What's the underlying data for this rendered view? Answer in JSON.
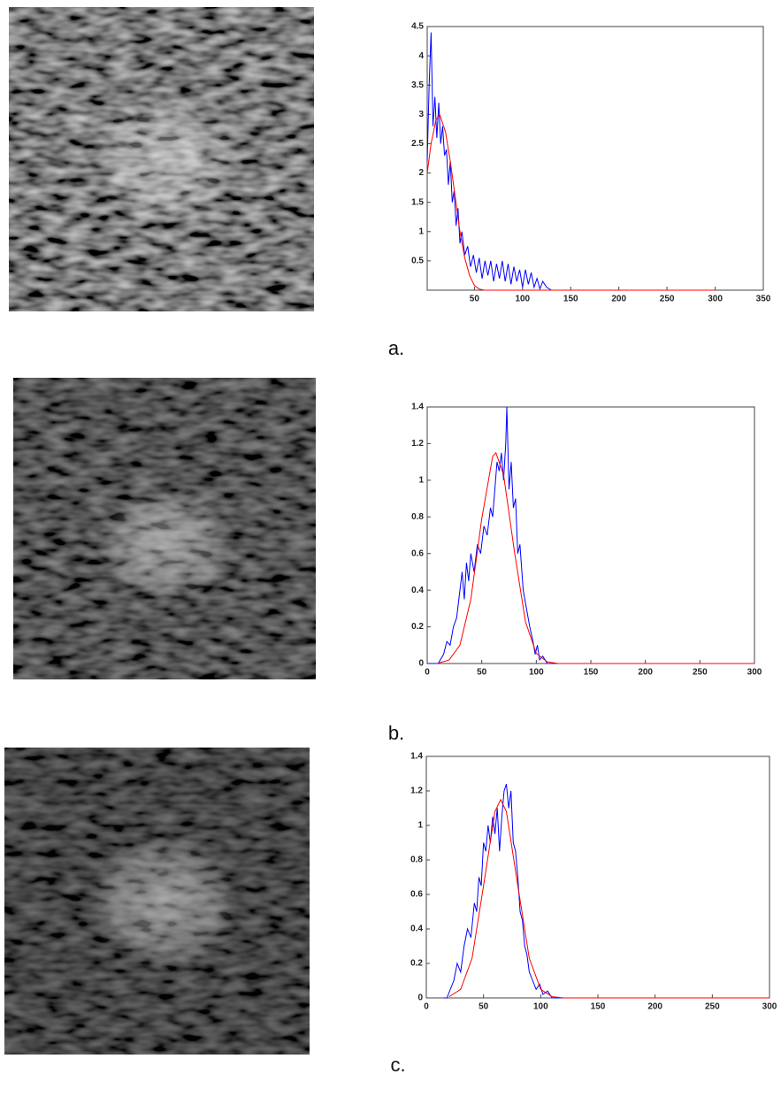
{
  "chart_data": [
    {
      "type": "line",
      "caption": "a.",
      "xlim": [
        1,
        350
      ],
      "xticks": [
        50,
        100,
        150,
        200,
        250,
        300,
        350
      ],
      "ylim": [
        0,
        4.5
      ],
      "yticks": [
        0.5,
        1,
        1.5,
        2,
        2.5,
        3,
        3.5,
        4,
        4.5
      ],
      "series": [
        {
          "color": "#0000ff",
          "x": [
            1,
            3,
            5,
            7,
            9,
            11,
            13,
            15,
            17,
            19,
            21,
            23,
            25,
            27,
            29,
            31,
            33,
            35,
            37,
            40,
            43,
            46,
            49,
            52,
            55,
            58,
            61,
            64,
            67,
            70,
            73,
            76,
            79,
            82,
            85,
            88,
            91,
            94,
            97,
            100,
            103,
            106,
            109,
            112,
            115,
            118,
            121,
            125,
            130,
            140
          ],
          "values": [
            2.2,
            3.5,
            4.4,
            2.8,
            3.3,
            2.6,
            3.2,
            2.5,
            2.8,
            2.3,
            2.4,
            1.8,
            2.2,
            1.5,
            1.7,
            1.1,
            1.4,
            0.8,
            1.0,
            0.6,
            0.75,
            0.4,
            0.6,
            0.3,
            0.55,
            0.2,
            0.5,
            0.25,
            0.5,
            0.15,
            0.45,
            0.2,
            0.5,
            0.15,
            0.45,
            0.1,
            0.4,
            0.15,
            0.35,
            0.05,
            0.35,
            0.1,
            0.3,
            0.05,
            0.2,
            0.02,
            0.15,
            0.05,
            0,
            0
          ]
        },
        {
          "color": "#ff0000",
          "x": [
            1,
            5,
            10,
            14,
            20,
            25,
            30,
            35,
            40,
            45,
            50,
            55,
            60,
            300
          ],
          "values": [
            2.0,
            2.5,
            2.9,
            3.0,
            2.7,
            2.2,
            1.6,
            1.0,
            0.55,
            0.25,
            0.08,
            0.02,
            0,
            0
          ]
        }
      ]
    },
    {
      "type": "line",
      "caption": "b.",
      "xlim": [
        0,
        300
      ],
      "xticks": [
        0,
        50,
        100,
        150,
        200,
        250,
        300
      ],
      "ylim": [
        0,
        1.4
      ],
      "yticks": [
        0,
        0.2,
        0.4,
        0.6,
        0.8,
        1,
        1.2,
        1.4
      ],
      "series": [
        {
          "color": "#0000ff",
          "x": [
            0,
            10,
            15,
            18,
            21,
            24,
            27,
            30,
            32,
            34,
            36,
            38,
            40,
            43,
            46,
            49,
            52,
            55,
            58,
            60,
            62,
            64,
            66,
            68,
            70,
            72,
            73,
            75,
            77,
            79,
            81,
            83,
            85,
            88,
            91,
            94,
            97,
            99,
            101,
            103,
            106,
            110,
            180
          ],
          "values": [
            0,
            0,
            0.05,
            0.12,
            0.1,
            0.2,
            0.25,
            0.4,
            0.5,
            0.35,
            0.55,
            0.45,
            0.6,
            0.5,
            0.65,
            0.6,
            0.75,
            0.7,
            0.85,
            0.8,
            0.95,
            1.1,
            1.05,
            1.15,
            1.0,
            1.2,
            1.4,
            0.95,
            1.1,
            0.85,
            0.9,
            0.6,
            0.65,
            0.4,
            0.3,
            0.2,
            0.12,
            0.05,
            0.1,
            0.02,
            0.04,
            0,
            0
          ]
        },
        {
          "color": "#ff0000",
          "x": [
            10,
            20,
            30,
            40,
            50,
            60,
            63,
            70,
            80,
            90,
            100,
            110,
            120,
            300
          ],
          "values": [
            0.002,
            0.019,
            0.1,
            0.35,
            0.79,
            1.13,
            1.15,
            1.03,
            0.61,
            0.23,
            0.055,
            0.009,
            0,
            0
          ]
        }
      ]
    },
    {
      "type": "line",
      "caption": "c.",
      "xlim": [
        0,
        300
      ],
      "xticks": [
        0,
        50,
        100,
        150,
        200,
        250,
        300
      ],
      "ylim": [
        0,
        1.4
      ],
      "yticks": [
        0,
        0.2,
        0.4,
        0.6,
        0.8,
        1,
        1.2,
        1.4
      ],
      "series": [
        {
          "color": "#0000ff",
          "x": [
            15,
            18,
            21,
            24,
            27,
            30,
            33,
            36,
            39,
            42,
            44,
            46,
            48,
            50,
            52,
            54,
            56,
            58,
            60,
            62,
            64,
            66,
            68,
            70,
            72,
            74,
            76,
            78,
            80,
            82,
            84,
            86,
            88,
            90,
            93,
            96,
            99,
            102,
            106,
            110,
            180
          ],
          "values": [
            0,
            0,
            0.05,
            0.1,
            0.2,
            0.15,
            0.3,
            0.4,
            0.35,
            0.55,
            0.5,
            0.7,
            0.65,
            0.9,
            0.85,
            1.0,
            0.9,
            1.05,
            0.95,
            1.1,
            0.85,
            1.05,
            1.2,
            1.24,
            1.1,
            1.2,
            0.9,
            0.85,
            0.7,
            0.5,
            0.45,
            0.3,
            0.25,
            0.15,
            0.1,
            0.05,
            0.08,
            0.02,
            0.04,
            0,
            0
          ]
        },
        {
          "color": "#ff0000",
          "x": [
            20,
            30,
            40,
            50,
            60,
            65,
            70,
            80,
            90,
            100,
            110,
            120,
            300
          ],
          "values": [
            0.007,
            0.05,
            0.23,
            0.65,
            1.08,
            1.15,
            1.08,
            0.65,
            0.23,
            0.05,
            0.007,
            0,
            0
          ]
        }
      ]
    }
  ]
}
